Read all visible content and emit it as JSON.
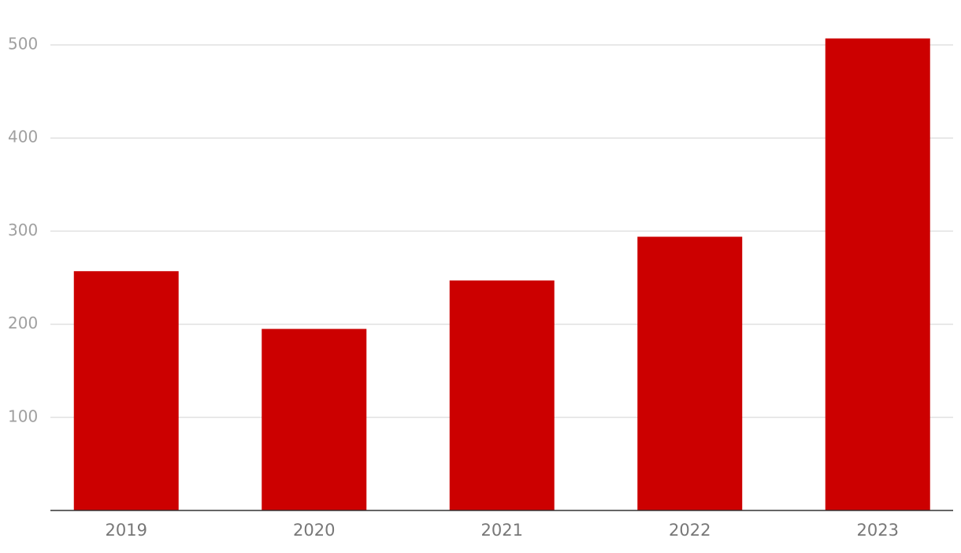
{
  "chart_data": {
    "type": "bar",
    "categories": [
      "2019",
      "2020",
      "2021",
      "2022",
      "2023"
    ],
    "values": [
      257,
      195,
      247,
      294,
      507
    ],
    "color": "#cc0000",
    "ylim": [
      0,
      520
    ],
    "yticks": [
      100,
      200,
      300,
      400,
      500
    ],
    "grid": true
  }
}
